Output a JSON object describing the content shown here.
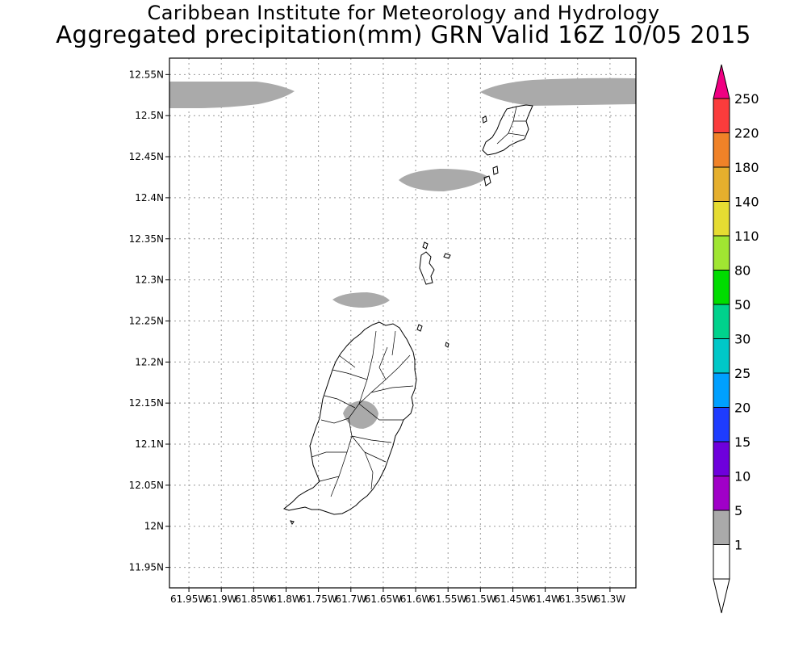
{
  "header": {
    "title_line1": "Caribbean Institute for Meteorology and Hydrology",
    "title_line2": "Aggregated precipitation(mm) GRN Valid 16Z 10/05 2015"
  },
  "map": {
    "region": "Grenada",
    "lat_range": [
      11.925,
      12.57
    ],
    "lon_range": [
      -61.98,
      -61.26
    ],
    "lat_ticks": [
      "11.95N",
      "12N",
      "12.05N",
      "12.1N",
      "12.15N",
      "12.2N",
      "12.25N",
      "12.3N",
      "12.35N",
      "12.4N",
      "12.45N",
      "12.5N",
      "12.55N"
    ],
    "lat_values": [
      11.95,
      12.0,
      12.05,
      12.1,
      12.15,
      12.2,
      12.25,
      12.3,
      12.35,
      12.4,
      12.45,
      12.5,
      12.55
    ],
    "lon_ticks": [
      "61.95W",
      "61.9W",
      "61.85W",
      "61.8W",
      "61.75W",
      "61.7W",
      "61.65W",
      "61.6W",
      "61.55W",
      "61.5W",
      "61.45W",
      "61.4W",
      "61.35W",
      "61.3W"
    ],
    "lon_values": [
      -61.95,
      -61.9,
      -61.85,
      -61.8,
      -61.75,
      -61.7,
      -61.65,
      -61.6,
      -61.55,
      -61.5,
      -61.45,
      -61.4,
      -61.35,
      -61.3
    ],
    "grid": true,
    "precip_color": "#aaaaaa",
    "precip_areas": [
      {
        "name": "northwest band",
        "range_mm": "1-5"
      },
      {
        "name": "northeast band",
        "range_mm": "1-5"
      },
      {
        "name": "central north patch",
        "range_mm": "1-5"
      },
      {
        "name": "small patch north of Grenada",
        "range_mm": "1-5"
      },
      {
        "name": "central Grenada patch",
        "range_mm": "1-5"
      }
    ]
  },
  "colorbar": {
    "levels": [
      {
        "label": "1",
        "color": "#ffffff"
      },
      {
        "label": "5",
        "color": "#aaaaaa"
      },
      {
        "label": "10",
        "color": "#a000c8"
      },
      {
        "label": "15",
        "color": "#6e00dc"
      },
      {
        "label": "20",
        "color": "#1e3cff"
      },
      {
        "label": "25",
        "color": "#00a0ff"
      },
      {
        "label": "30",
        "color": "#00c8c8"
      },
      {
        "label": "50",
        "color": "#00d28c"
      },
      {
        "label": "80",
        "color": "#00dc00"
      },
      {
        "label": "110",
        "color": "#a0e632"
      },
      {
        "label": "140",
        "color": "#e6dc32"
      },
      {
        "label": "180",
        "color": "#e6af2d"
      },
      {
        "label": "220",
        "color": "#f08228"
      },
      {
        "label": "250",
        "color": "#fa3c3c"
      }
    ],
    "top_color": "#f00082",
    "bottom_color": "#ffffff"
  }
}
